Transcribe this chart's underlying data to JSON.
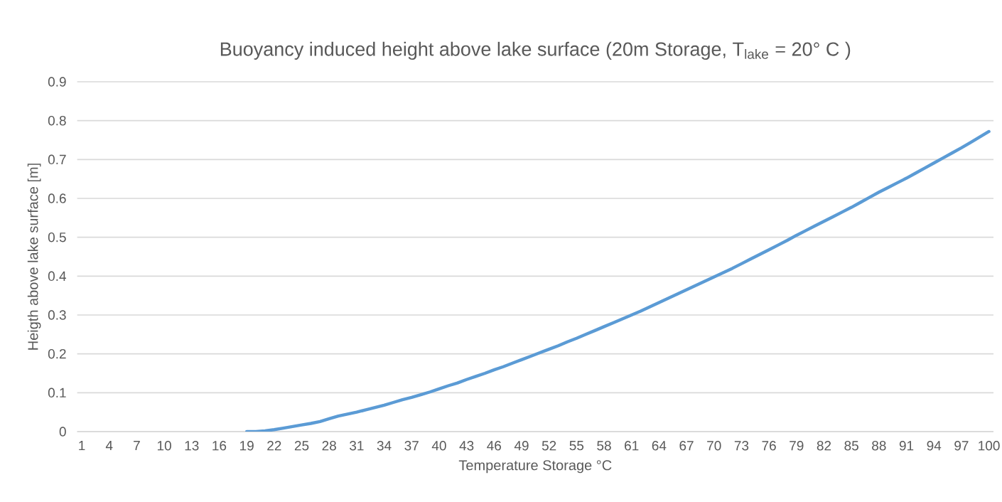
{
  "chart_data": {
    "type": "line",
    "title": "Buoyancy induced height above lake surface (20m Storage, T$_{lake}$ = 20° C )",
    "xlabel": "Temperature Storage °C",
    "ylabel": "Heigth above lake surface [m]",
    "categories": [
      "1",
      null,
      null,
      "4",
      null,
      null,
      "7",
      null,
      null,
      "10",
      null,
      null,
      "13",
      null,
      null,
      "16",
      null,
      null,
      "19",
      null,
      null,
      "22",
      null,
      null,
      "25",
      null,
      null,
      "28",
      null,
      null,
      "31",
      null,
      null,
      "34",
      null,
      null,
      "37",
      null,
      null,
      "40",
      null,
      null,
      "43",
      null,
      null,
      "46",
      null,
      null,
      "49",
      null,
      null,
      "52",
      null,
      null,
      "55",
      null,
      null,
      "58",
      null,
      null,
      "61",
      null,
      null,
      "64",
      null,
      null,
      "67",
      null,
      null,
      "70",
      null,
      null,
      "73",
      null,
      null,
      "76",
      null,
      null,
      "79",
      null,
      null,
      "82",
      null,
      null,
      "85",
      null,
      null,
      "88",
      null,
      null,
      "91",
      null,
      null,
      "94",
      null,
      null,
      "97",
      null,
      null,
      "100"
    ],
    "series": [
      {
        "color": "#5b9bd5",
        "values": [
          null,
          null,
          null,
          null,
          null,
          null,
          null,
          null,
          null,
          null,
          null,
          null,
          null,
          null,
          null,
          null,
          null,
          null,
          0,
          0,
          0.002,
          0.005,
          0.009,
          0.013,
          0.017,
          0.021,
          0.026,
          0.033,
          0.04,
          0.045,
          0.05,
          0.056,
          0.062,
          0.068,
          0.075,
          0.082,
          0.088,
          0.095,
          0.102,
          0.11,
          0.118,
          0.125,
          0.134,
          0.142,
          0.15,
          0.159,
          0.167,
          0.176,
          0.185,
          0.194,
          0.203,
          0.212,
          0.221,
          0.231,
          0.24,
          0.25,
          0.26,
          0.27,
          0.28,
          0.29,
          0.3,
          0.31,
          0.321,
          0.332,
          0.343,
          0.354,
          0.365,
          0.376,
          0.387,
          0.398,
          0.409,
          0.42,
          0.432,
          0.444,
          0.456,
          0.468,
          0.48,
          0.492,
          0.505,
          0.517,
          0.529,
          0.541,
          0.553,
          0.565,
          0.577,
          0.59,
          0.603,
          0.616,
          0.628,
          0.64,
          0.652,
          0.665,
          0.678,
          0.691,
          0.704,
          0.717,
          0.73,
          0.744,
          0.758,
          0.772
        ]
      }
    ],
    "ylim": [
      0,
      0.9
    ],
    "yticks": [
      0,
      0.1,
      0.2,
      0.3,
      0.4,
      0.5,
      0.6,
      0.7,
      0.8,
      0.9
    ],
    "grid": "y",
    "marker": "none",
    "line_style": "solid"
  }
}
